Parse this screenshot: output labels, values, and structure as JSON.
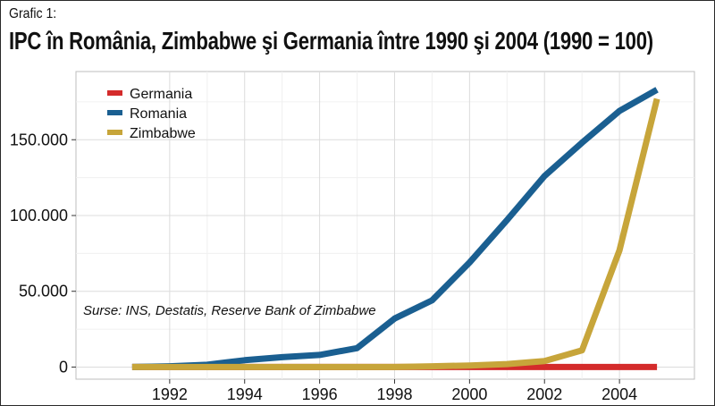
{
  "header": {
    "subtitle": "Grafic 1:",
    "title": "IPC în România, Zimbabwe şi Germania între 1990 şi 2004 (1990 = 100)"
  },
  "source_note": "Surse: INS, Destatis, Reserve Bank of Zimbabwe",
  "chart_data": {
    "type": "line",
    "title": "IPC în România, Zimbabwe şi Germania între 1990 şi 2004 (1990 = 100)",
    "xlabel": "",
    "ylabel": "",
    "x": [
      1991,
      1992,
      1993,
      1994,
      1995,
      1996,
      1997,
      1998,
      1999,
      2000,
      2001,
      2002,
      2003,
      2004,
      2005
    ],
    "xlim": [
      1989.5,
      2006
    ],
    "ylim": [
      -8000,
      195000
    ],
    "x_ticks": [
      1992,
      1994,
      1996,
      1998,
      2000,
      2002,
      2004
    ],
    "x_tick_labels": [
      "1992",
      "1994",
      "1996",
      "1998",
      "2000",
      "2002",
      "2004"
    ],
    "y_ticks": [
      0,
      50000,
      100000,
      150000
    ],
    "y_tick_labels": [
      "0",
      "50.000",
      "100.000",
      "150.000"
    ],
    "grid": true,
    "legend_position": "top-left",
    "series": [
      {
        "name": "Germania",
        "color": "#d42b2b",
        "values": [
          0,
          0,
          0,
          0,
          0,
          0,
          0,
          0,
          0,
          0,
          0,
          0,
          0,
          0,
          0
        ]
      },
      {
        "name": "Romania",
        "color": "#1a5f91",
        "values": [
          0,
          500,
          1500,
          4500,
          6500,
          8000,
          12500,
          32000,
          44000,
          69000,
          97000,
          126000,
          148000,
          169000,
          183000
        ]
      },
      {
        "name": "Zimbabwe",
        "color": "#c7a53a",
        "values": [
          0,
          0,
          0,
          0,
          0,
          0,
          0,
          0,
          500,
          1000,
          2000,
          4000,
          11000,
          77000,
          177000
        ]
      }
    ]
  }
}
